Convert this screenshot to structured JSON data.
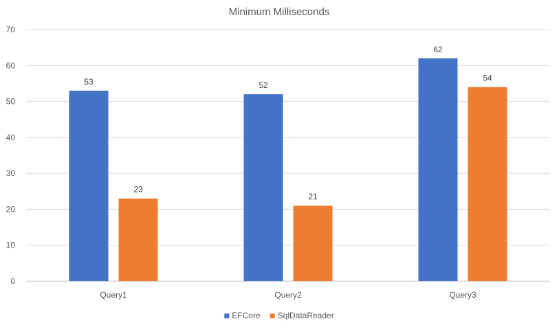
{
  "chart_data": {
    "type": "bar",
    "title": "Minimum Milliseconds",
    "xlabel": "",
    "ylabel": "",
    "categories": [
      "Query1",
      "Query2",
      "Query3"
    ],
    "series": [
      {
        "name": "EFCore",
        "values": [
          53,
          52,
          62
        ],
        "color": "#4472c4"
      },
      {
        "name": "SqlDataReader",
        "values": [
          23,
          21,
          54
        ],
        "color": "#ed7d31"
      }
    ],
    "ylim": [
      0,
      70
    ],
    "yticks": [
      0,
      10,
      20,
      30,
      40,
      50,
      60,
      70
    ],
    "grid": true,
    "legend_position": "bottom"
  }
}
